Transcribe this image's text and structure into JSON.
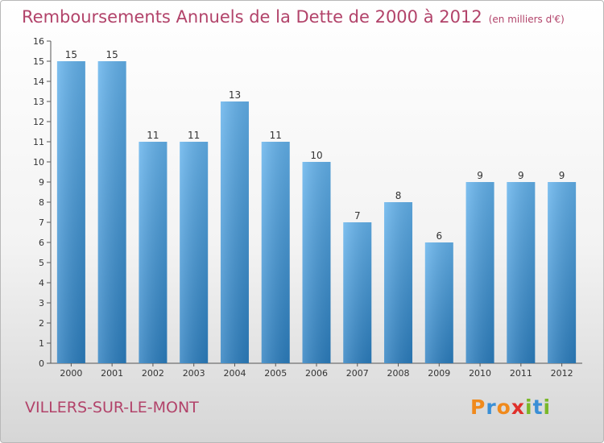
{
  "title": "Remboursements Annuels de la Dette de 2000 à 2012",
  "subtitle": "(en milliers d'€)",
  "location": "VILLERS-SUR-LE-MONT",
  "logo": {
    "letters": [
      "P",
      "r",
      "o",
      "x",
      "i",
      "t",
      "i"
    ],
    "colors": [
      "#f08a1c",
      "#3a8fd6",
      "#f08a1c",
      "#e0302b",
      "#7ab829",
      "#3a8fd6",
      "#7ab829"
    ]
  },
  "colors": {
    "bar_top": "#63b2ec",
    "bar_bottom": "#2c7fc0",
    "title": "#b2436a"
  },
  "chart_data": {
    "type": "bar",
    "categories": [
      "2000",
      "2001",
      "2002",
      "2003",
      "2004",
      "2005",
      "2006",
      "2007",
      "2008",
      "2009",
      "2010",
      "2011",
      "2012"
    ],
    "values": [
      15,
      15,
      11,
      11,
      13,
      11,
      10,
      7,
      8,
      6,
      9,
      9,
      9
    ],
    "title": "Remboursements Annuels de la Dette de 2000 à 2012",
    "ylim": [
      0,
      16
    ],
    "yticks": [
      0,
      1,
      2,
      3,
      4,
      5,
      6,
      7,
      8,
      9,
      10,
      11,
      12,
      13,
      14,
      15,
      16
    ],
    "grid": false
  }
}
